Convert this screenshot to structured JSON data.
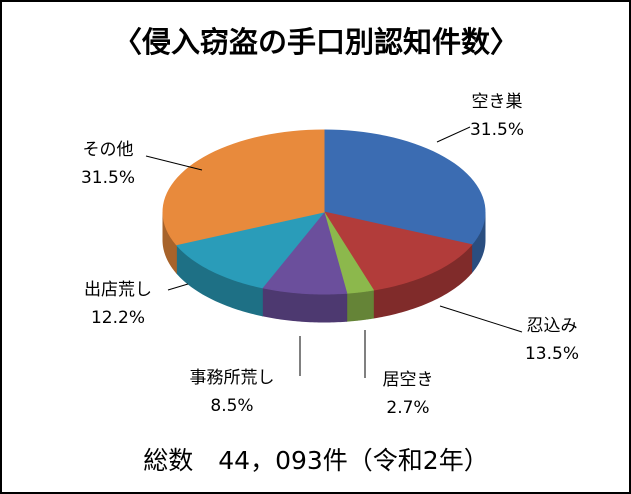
{
  "chart_data": {
    "type": "pie3d",
    "title": "〈侵入窃盗の手口別認知件数〉",
    "subtitle": "総数　44，093件（令和2年）",
    "categories": [
      "空き巣",
      "忍込み",
      "居空き",
      "事務所荒し",
      "出店荒し",
      "その他"
    ],
    "values": [
      31.5,
      13.5,
      2.7,
      8.5,
      12.2,
      31.5
    ],
    "value_labels": [
      "31.5%",
      "13.5%",
      "2.7%",
      "8.5%",
      "12.2%",
      "31.5%"
    ],
    "colors": [
      "#3b6cb2",
      "#b23c3a",
      "#8cb84c",
      "#6b4f9c",
      "#2a9cb9",
      "#e88a3c"
    ]
  }
}
